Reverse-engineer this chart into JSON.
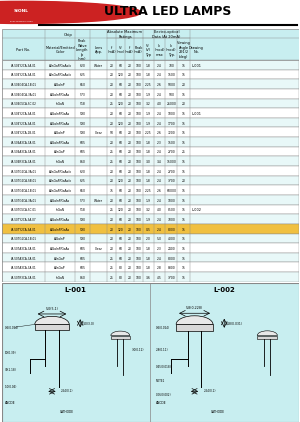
{
  "title": "ULTRA LED LAMPS",
  "bg_color": "#ffffff",
  "header_bg": "#c8eef0",
  "row_bg_odd": "#ffffff",
  "row_bg_even": "#e8f8f8",
  "highlight_row": "#f0c040",
  "table_border": "#888888",
  "logo_color": "#cc2222",
  "rows": [
    [
      "LA-504Y2CA-3A-01",
      "AlInGaP/GaAs/o",
      "620",
      "Water",
      "20",
      "60",
      "20",
      "100",
      "1.8",
      "2.4",
      "700",
      "15",
      "L-001"
    ],
    [
      "LA-504Y2CA-3A-01",
      "AlInGaP/GaAs/o",
      "625",
      "",
      "20",
      "120",
      "20",
      "100",
      "1.8",
      "2.4",
      "1500",
      "15",
      ""
    ],
    [
      "LA-504G4CA-1B-01",
      "AlGaInP",
      "650",
      "",
      "20",
      "60",
      "20",
      "100",
      "2.25",
      "2.6",
      "5000",
      "20",
      ""
    ],
    [
      "LA-504G4CA-3A-01",
      "AlGaInP/GaAs",
      "573",
      "",
      "20",
      "60",
      "20",
      "100",
      "1.9",
      "2.4",
      "500",
      "15",
      ""
    ],
    [
      "LA-504G5CA-SC-02",
      "InGaN",
      "518",
      "",
      "25",
      "120",
      "20",
      "100",
      "3.2",
      "4.0",
      "26000",
      "20",
      ""
    ],
    [
      "LA-504Y2CA-3A-01",
      "AlGaInP/GaAs",
      "590",
      "",
      "20",
      "60",
      "20",
      "100",
      "1.9",
      "2.4",
      "1000",
      "15",
      "L-001"
    ],
    [
      "LA-504Y2CA-3A-01",
      "AlGaInP/GaAs",
      "590",
      "",
      "20",
      "120",
      "20",
      "100",
      "1.9",
      "2.4",
      "1700",
      "15",
      ""
    ],
    [
      "LA-504Y2CA-1B-01",
      "AlGaInP",
      "590",
      "Clear",
      "50",
      "60",
      "20",
      "100",
      "2.25",
      "2.6",
      "7200",
      "15",
      ""
    ],
    [
      "LA-504A3CA-3A-01",
      "AlGaInP/GaAs",
      "605",
      "",
      "20",
      "60",
      "20",
      "100",
      "1.8",
      "2.3",
      "1500",
      "15",
      ""
    ],
    [
      "LA-504A3CA-3A-01",
      "AlInGaP",
      "605",
      "",
      "25",
      "60",
      "20",
      "100",
      "1.8",
      "2.4",
      "2700",
      "25",
      ""
    ],
    [
      "LA-504R3CA-3A-01",
      "InGaN",
      "860",
      "",
      "25",
      "60",
      "20",
      "100",
      "3.0",
      "3.4",
      "15000",
      "15",
      ""
    ],
    [
      "LA-507G2CA-3A-01",
      "AlInGaP/GaAs/o",
      "620",
      "",
      "20",
      "60",
      "20",
      "100",
      "1.8",
      "2.4",
      "2700",
      "15",
      ""
    ],
    [
      "LA-507G2CA-SB-01",
      "AlInGaP/GaAs/o",
      "625",
      "",
      "20",
      "120",
      "20",
      "100",
      "1.8",
      "2.4",
      "3700",
      "20",
      ""
    ],
    [
      "LA-507G4CA-1B-01",
      "AlInGaP/GaAs/o",
      "650",
      "",
      "75",
      "60",
      "20",
      "100",
      "2.25",
      "2.6",
      "60000",
      "15",
      ""
    ],
    [
      "LA-507G4CA-3A-01",
      "AlGaInP/GaAs",
      "573",
      "Water",
      "20",
      "60",
      "20",
      "100",
      "1.9",
      "2.4",
      "1000",
      "15",
      ""
    ],
    [
      "LA-507G5CA-SC-01",
      "InGaN",
      "518",
      "",
      "25",
      "120",
      "20",
      "100",
      "3.2",
      "4.0",
      "8500",
      "15",
      "L-002"
    ],
    [
      "LA-507Y2CA-3A-07",
      "AlGaInP/GaAs",
      "590",
      "",
      "20",
      "60",
      "20",
      "100",
      "1.9",
      "2.4",
      "7000",
      "15",
      ""
    ],
    [
      "LA-507Y2CA-3A-01",
      "AlGaInP/GaAs",
      "590",
      "",
      "20",
      "120",
      "20",
      "100",
      "0.5",
      "2.4",
      "8000",
      "15",
      ""
    ],
    [
      "LA-507G1CA-1B-01",
      "AlGaInP",
      "590",
      "",
      "20",
      "60",
      "20",
      "100",
      "2.0",
      "5.0",
      "4000",
      "15",
      ""
    ],
    [
      "LA-507A3CA-3A-01",
      "AlGaInP/GaAs",
      "605",
      "Clear",
      "20",
      "60",
      "20",
      "100",
      "1.8",
      "2.3",
      "2400",
      "15",
      ""
    ],
    [
      "LA-507A3CA-3A-01",
      "AlInGaP",
      "605",
      "",
      "25",
      "60",
      "20",
      "100",
      "1.8",
      "2.4",
      "8000",
      "15",
      ""
    ],
    [
      "LA-507A3CA-3A-01",
      "AlInGaP",
      "605",
      "",
      "25",
      "80",
      "20",
      "100",
      "1.8",
      "2.8",
      "8800",
      "15",
      ""
    ],
    [
      "LA-507R3CA-3A-01",
      "InGaN",
      "860",
      "",
      "25",
      "80",
      "20",
      "100",
      "3.6",
      "4.5",
      "3700",
      "15",
      ""
    ]
  ]
}
